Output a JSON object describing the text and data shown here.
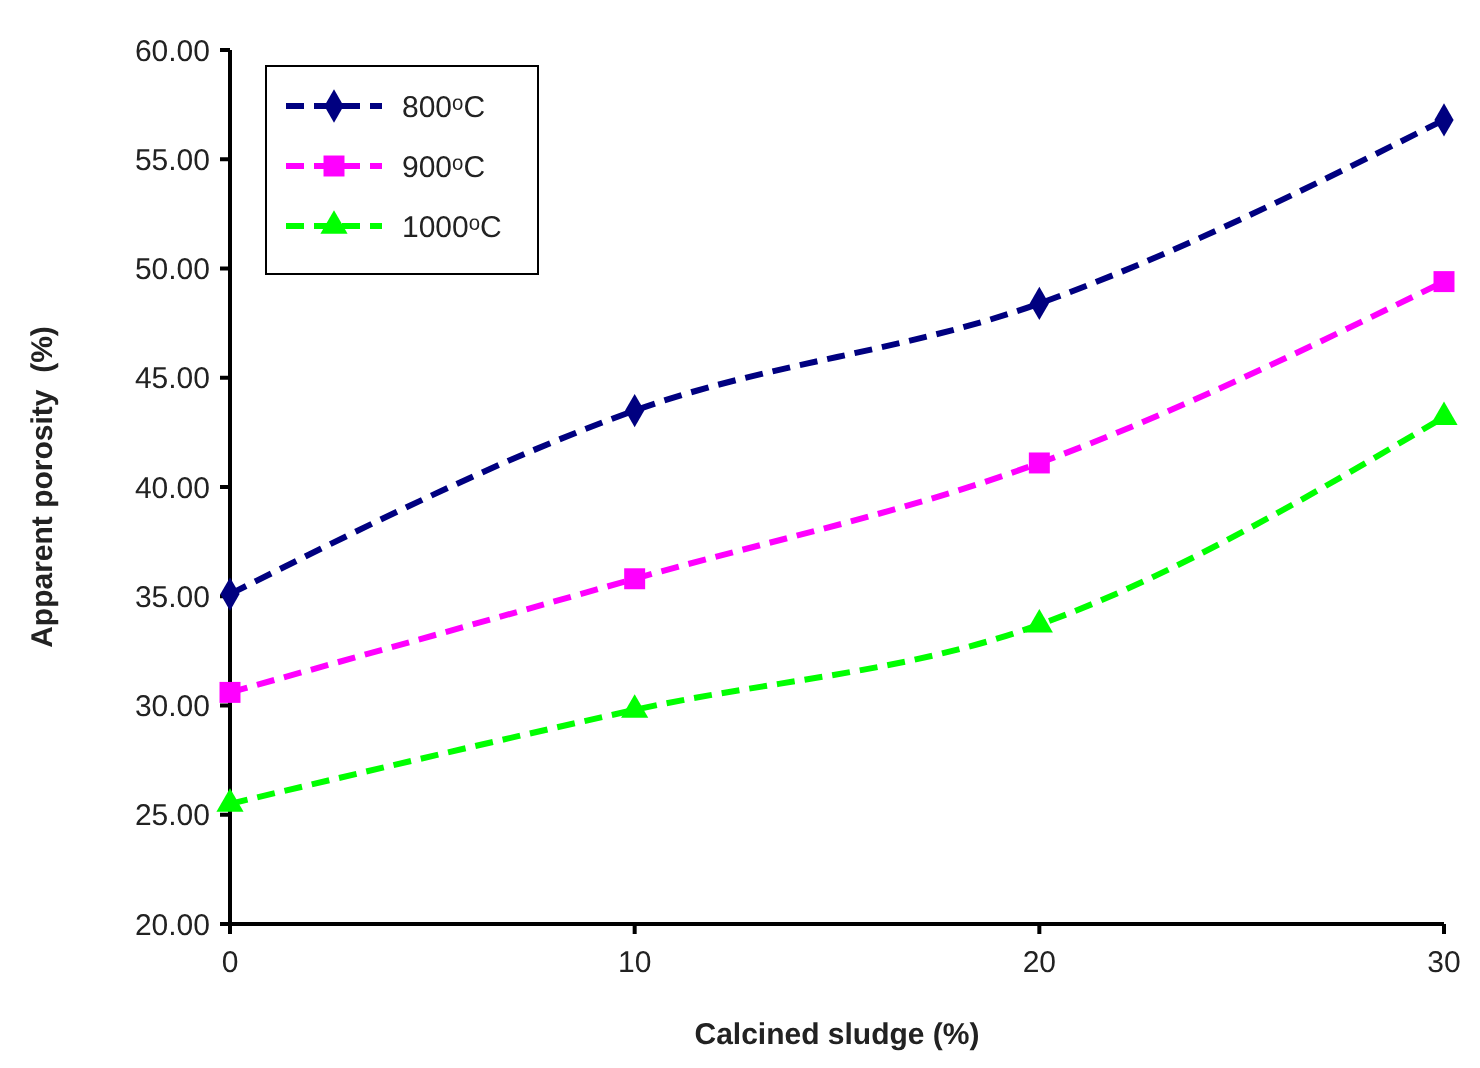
{
  "chart_data": {
    "type": "line",
    "xlabel": "Calcined sludge (%)",
    "ylabel": "Apparent porosity  (%)",
    "x": [
      0,
      10,
      20,
      30
    ],
    "xlim": [
      0,
      30
    ],
    "xticks": [
      0,
      10,
      20,
      30
    ],
    "ylim": [
      20,
      60
    ],
    "yticks": [
      {
        "value": 20,
        "label": "20.00"
      },
      {
        "value": 25,
        "label": "25.00"
      },
      {
        "value": 30,
        "label": "30.00"
      },
      {
        "value": 35,
        "label": "35.00"
      },
      {
        "value": 40,
        "label": "40.00"
      },
      {
        "value": 45,
        "label": "45.00"
      },
      {
        "value": 50,
        "label": "50.00"
      },
      {
        "value": 55,
        "label": "55.00"
      },
      {
        "value": 60,
        "label": "60.00"
      }
    ],
    "grid": false,
    "legend": "top left",
    "line_style": "dashed",
    "series": [
      {
        "name": "800ᵒC",
        "color": "#000080",
        "marker": "diamond",
        "values": [
          35.1,
          43.5,
          48.4,
          56.8
        ]
      },
      {
        "name": "900ᵒC",
        "color": "#ff00ff",
        "marker": "square",
        "values": [
          30.6,
          35.8,
          41.1,
          49.4
        ]
      },
      {
        "name": "1000ᵒC",
        "color": "#00ff00",
        "marker": "triangle",
        "values": [
          25.5,
          29.8,
          33.7,
          43.2
        ]
      }
    ]
  }
}
